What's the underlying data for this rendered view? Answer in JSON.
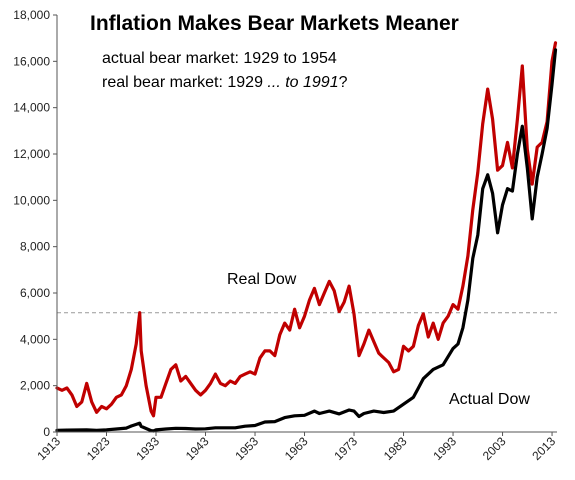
{
  "chart_data": {
    "type": "line",
    "title": "Inflation Makes Bear Markets Meaner",
    "annotations": [
      {
        "parts": [
          {
            "text": "actual bear market: 1929 to 1954",
            "italic": false
          }
        ]
      },
      {
        "parts": [
          {
            "text": "real bear market: 1929 ",
            "italic": false
          },
          {
            "text": "... to 1991",
            "italic": true
          },
          {
            "text": "?",
            "italic": false
          }
        ]
      }
    ],
    "xlabel": "",
    "ylabel": "",
    "xlim": [
      1913,
      2014
    ],
    "ylim": [
      0,
      18000
    ],
    "x_ticks": [
      "1913",
      "1923",
      "1933",
      "1943",
      "1953",
      "1963",
      "1973",
      "1983",
      "1993",
      "2003",
      "2013"
    ],
    "y_ticks": [
      "0",
      "2,000",
      "4,000",
      "6,000",
      "8,000",
      "10,000",
      "12,000",
      "14,000",
      "16,000",
      "18,000"
    ],
    "reference_line": {
      "y": 5150,
      "style": "dashed",
      "color": "#999999"
    },
    "series": [
      {
        "name": "Real Dow",
        "color": "#c00000",
        "x": [
          1913,
          1914,
          1915,
          1916,
          1917,
          1918,
          1919,
          1920,
          1921,
          1922,
          1923,
          1924,
          1925,
          1926,
          1927,
          1928,
          1929,
          1929.7,
          1930,
          1931,
          1932,
          1932.5,
          1933,
          1934,
          1935,
          1936,
          1937,
          1938,
          1939,
          1940,
          1941,
          1942,
          1943,
          1944,
          1945,
          1946,
          1947,
          1948,
          1949,
          1950,
          1951,
          1952,
          1953,
          1954,
          1955,
          1956,
          1957,
          1958,
          1959,
          1960,
          1961,
          1962,
          1963,
          1964,
          1965,
          1966,
          1967,
          1968,
          1969,
          1970,
          1971,
          1972,
          1973,
          1974,
          1975,
          1976,
          1977,
          1978,
          1979,
          1980,
          1981,
          1982,
          1983,
          1984,
          1985,
          1986,
          1987,
          1988,
          1989,
          1990,
          1991,
          1992,
          1993,
          1994,
          1995,
          1996,
          1997,
          1998,
          1999,
          2000,
          2001,
          2002,
          2003,
          2004,
          2005,
          2006,
          2007,
          2008,
          2009,
          2010,
          2011,
          2012,
          2013,
          2013.7
        ],
        "y": [
          1900,
          1800,
          1900,
          1600,
          1100,
          1300,
          2100,
          1300,
          850,
          1100,
          1000,
          1200,
          1500,
          1600,
          2000,
          2700,
          3800,
          5150,
          3500,
          2000,
          900,
          700,
          1500,
          1500,
          2100,
          2700,
          2900,
          2200,
          2400,
          2100,
          1800,
          1600,
          1800,
          2100,
          2500,
          2100,
          2000,
          2200,
          2100,
          2400,
          2500,
          2600,
          2500,
          3200,
          3500,
          3500,
          3300,
          4200,
          4700,
          4400,
          5300,
          4500,
          5000,
          5700,
          6200,
          5500,
          6000,
          6500,
          6100,
          5200,
          5600,
          6300,
          5100,
          3300,
          3800,
          4400,
          3900,
          3400,
          3200,
          3000,
          2600,
          2700,
          3700,
          3500,
          3700,
          4600,
          5100,
          4100,
          4700,
          4000,
          4700,
          5000,
          5500,
          5300,
          6300,
          7600,
          9600,
          11200,
          13300,
          14800,
          13500,
          11300,
          11500,
          12500,
          11400,
          13500,
          15800,
          12200,
          10700,
          12300,
          12500,
          13400,
          16000,
          16800
        ]
      },
      {
        "name": "Actual Dow",
        "color": "#000000",
        "x": [
          1913,
          1915,
          1917,
          1919,
          1921,
          1923,
          1925,
          1927,
          1928,
          1929,
          1929.7,
          1930,
          1931,
          1932,
          1932.5,
          1933,
          1935,
          1937,
          1939,
          1941,
          1943,
          1945,
          1947,
          1949,
          1951,
          1953,
          1955,
          1957,
          1959,
          1961,
          1963,
          1965,
          1966,
          1968,
          1970,
          1972,
          1973,
          1974,
          1975,
          1977,
          1979,
          1981,
          1983,
          1985,
          1986,
          1987,
          1989,
          1991,
          1993,
          1994,
          1995,
          1996,
          1997,
          1998,
          1999,
          2000,
          2001,
          2002,
          2003,
          2004,
          2005,
          2006,
          2007,
          2008,
          2009,
          2010,
          2011,
          2012,
          2013,
          2013.7
        ],
        "y": [
          70,
          80,
          85,
          90,
          75,
          95,
          130,
          170,
          260,
          330,
          380,
          240,
          150,
          60,
          45,
          90,
          130,
          160,
          150,
          130,
          140,
          180,
          180,
          180,
          250,
          280,
          430,
          450,
          620,
          700,
          720,
          900,
          800,
          900,
          780,
          950,
          900,
          670,
          800,
          900,
          840,
          900,
          1200,
          1500,
          1900,
          2300,
          2700,
          2900,
          3600,
          3800,
          4500,
          5700,
          7500,
          8500,
          10500,
          11100,
          10300,
          8600,
          9800,
          10500,
          10400,
          12000,
          13200,
          11400,
          9200,
          11000,
          12000,
          13100,
          15000,
          16500
        ]
      }
    ]
  },
  "labels": {
    "real_dow": "Real Dow",
    "actual_dow": "Actual Dow"
  }
}
